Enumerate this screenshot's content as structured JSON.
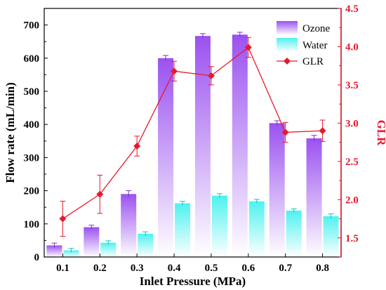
{
  "chart_data": {
    "type": "bar",
    "categories": [
      "0.1",
      "0.2",
      "0.3",
      "0.4",
      "0.5",
      "0.6",
      "0.7",
      "0.8"
    ],
    "xlabel": "Inlet Pressure (MPa)",
    "ylabel": "Flow rate (mL/min)",
    "y2label": "GLR",
    "ylim": [
      0,
      750
    ],
    "yticks": [
      0,
      100,
      200,
      300,
      400,
      500,
      600,
      700
    ],
    "y2lim": [
      1.25,
      4.5
    ],
    "y2ticks": [
      1.5,
      2.0,
      2.5,
      3.0,
      3.5,
      4.0,
      4.5
    ],
    "grid": false,
    "legend": "top-right",
    "series": [
      {
        "name": "Ozone",
        "kind": "bar",
        "values": [
          35,
          90,
          190,
          600,
          667,
          671,
          404,
          358
        ],
        "errors": [
          7,
          6,
          10,
          8,
          7,
          7,
          7,
          9
        ],
        "color_top": "#9b51f0",
        "color_bottom": "#ffffff"
      },
      {
        "name": "Water",
        "kind": "bar",
        "values": [
          20,
          43,
          70,
          162,
          185,
          168,
          140,
          123
        ],
        "errors": [
          6,
          6,
          6,
          6,
          6,
          6,
          5,
          7
        ],
        "color_top": "#4ef2ef",
        "color_bottom": "#ffffff"
      },
      {
        "name": "GLR",
        "kind": "line",
        "axis": "right",
        "values": [
          1.75,
          2.07,
          2.7,
          3.68,
          3.62,
          3.99,
          2.88,
          2.9
        ],
        "errors": [
          0.23,
          0.25,
          0.13,
          0.13,
          0.12,
          0.13,
          0.13,
          0.14
        ],
        "color": "#e8192c"
      }
    ]
  }
}
